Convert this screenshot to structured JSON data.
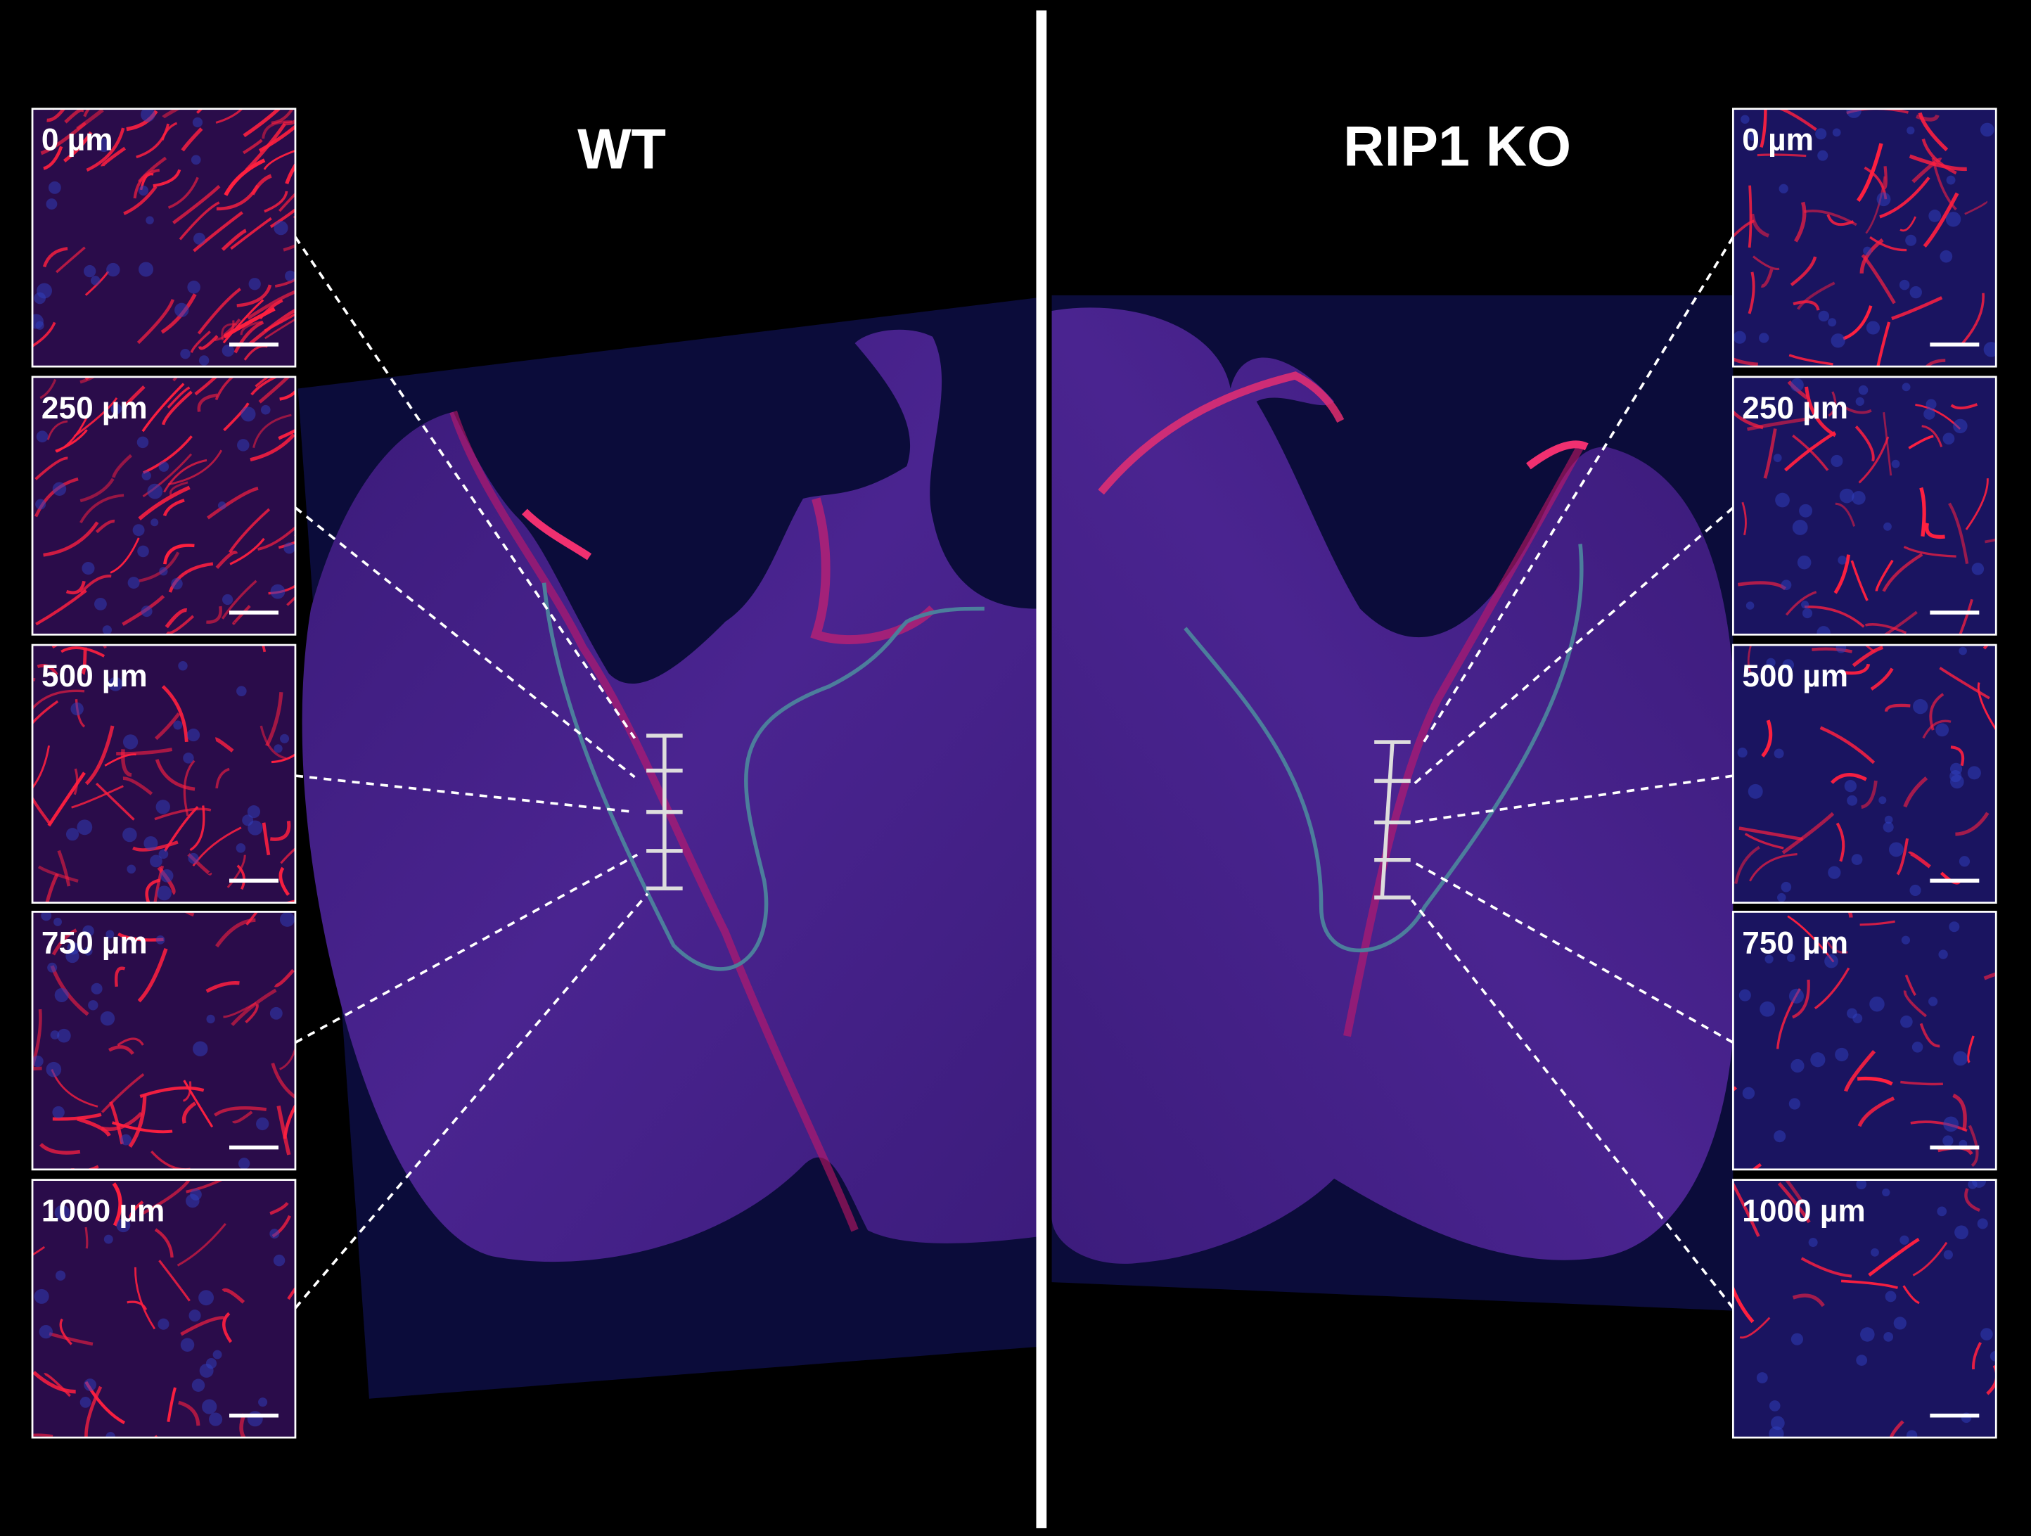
{
  "panels": [
    {
      "title": "WT",
      "insets": [
        "0 µm",
        "250 µm",
        "500 µm",
        "750 µm",
        "1000 µm"
      ]
    },
    {
      "title": "RIP1 KO",
      "insets": [
        "0 µm",
        "250 µm",
        "500 µm",
        "750 µm",
        "1000 µm"
      ]
    }
  ]
}
